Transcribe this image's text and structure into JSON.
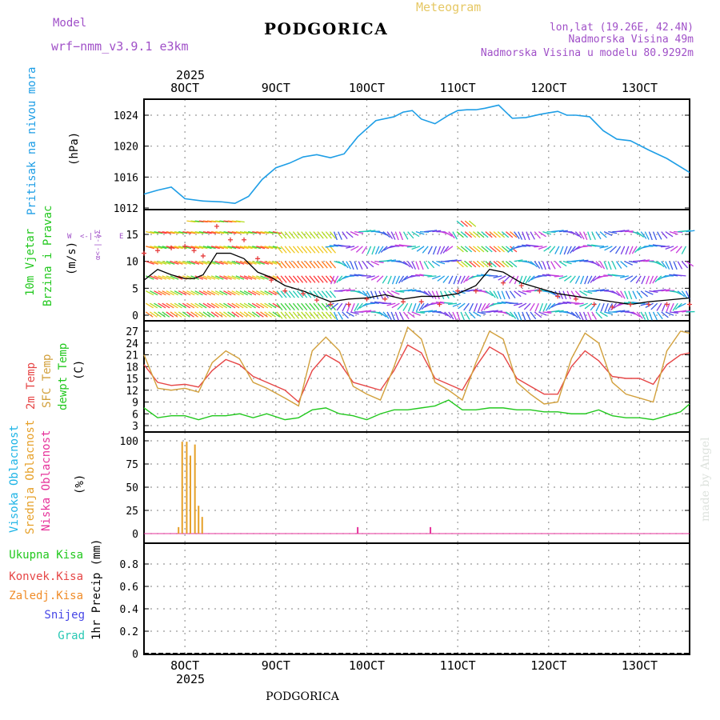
{
  "header": {
    "model_label": "Model",
    "model_name": "wrf−nmm_v3.9.1  e3km",
    "station": "PODGORICA",
    "product": "Meteogram",
    "lonlat": "lon,lat (19.26E, 42.4N)",
    "elevation": "Nadmorska Visina 49m",
    "model_elevation": "Nadmorska Visina u modelu 80.9292m",
    "footer_station": "PODGORICA",
    "credit": "made by Angel"
  },
  "colors": {
    "pressure": "#1e9ee6",
    "wind_speed_label": "#22c81e",
    "gust_label": "#22c81e",
    "temp2m": "#e64646",
    "sfc_temp": "#d2a03c",
    "dewpoint": "#22c81e",
    "cloud_high": "#1eb4e6",
    "cloud_mid": "#e6a028",
    "cloud_low": "#e6329a",
    "precip_total": "#22c81e",
    "precip_conv": "#e64646",
    "precip_frz": "#f08c28",
    "precip_snow": "#4646e6",
    "precip_hail": "#28c8b4",
    "title_purple": "#a050c8",
    "title_gold": "#e6c864",
    "wind_mean_line": "#000000",
    "wind_cross": "#e63c3c"
  },
  "time_axis": {
    "start_day": 7.55,
    "end_day": 13.55,
    "ticks": [
      {
        "day": 8,
        "label": "8OCT"
      },
      {
        "day": 9,
        "label": "9OCT"
      },
      {
        "day": 10,
        "label": "10OCT"
      },
      {
        "day": 11,
        "label": "11OCT"
      },
      {
        "day": 12,
        "label": "12OCT"
      },
      {
        "day": 13,
        "label": "13OCT"
      }
    ],
    "year": "2025"
  },
  "chart_data": [
    {
      "type": "line",
      "title": "Pritisak na nivou mora",
      "ylabel": "(hPa)",
      "ylim": [
        1012,
        1026
      ],
      "yticks": [
        "1012",
        "1016",
        "1020",
        "1024"
      ],
      "x": [
        7.55,
        7.7,
        7.85,
        8.0,
        8.2,
        8.4,
        8.55,
        8.7,
        8.85,
        9.0,
        9.15,
        9.3,
        9.45,
        9.6,
        9.75,
        9.9,
        10.1,
        10.3,
        10.4,
        10.5,
        10.6,
        10.75,
        10.9,
        11.0,
        11.1,
        11.2,
        11.3,
        11.45,
        11.6,
        11.75,
        11.9,
        12.0,
        12.1,
        12.2,
        12.3,
        12.45,
        12.6,
        12.75,
        12.9,
        13.1,
        13.3,
        13.55
      ],
      "series": [
        {
          "name": "MSLP",
          "values": [
            1013.8,
            1014.3,
            1014.7,
            1013.2,
            1012.9,
            1012.8,
            1012.6,
            1013.5,
            1015.7,
            1017.2,
            1017.8,
            1018.6,
            1018.9,
            1018.5,
            1019.0,
            1021.2,
            1023.3,
            1023.8,
            1024.4,
            1024.6,
            1023.5,
            1022.9,
            1024.0,
            1024.6,
            1024.7,
            1024.7,
            1024.9,
            1025.3,
            1023.6,
            1023.7,
            1024.1,
            1024.3,
            1024.5,
            1024.0,
            1024.0,
            1023.8,
            1022.0,
            1020.9,
            1020.7,
            1019.5,
            1018.4,
            1016.6
          ]
        }
      ]
    },
    {
      "type": "line",
      "title": "10m Vjetar Brzina i Pravac",
      "ylabel": "(m/s)",
      "ylim": [
        0,
        19
      ],
      "yticks": [
        "0",
        "5",
        "10",
        "15"
      ],
      "compass_label": "N <-|-> S  W <-|-> E",
      "x": [
        7.55,
        7.7,
        7.85,
        8.0,
        8.1,
        8.2,
        8.35,
        8.5,
        8.65,
        8.8,
        8.95,
        9.1,
        9.3,
        9.45,
        9.6,
        9.8,
        10.0,
        10.2,
        10.4,
        10.6,
        10.8,
        11.0,
        11.2,
        11.35,
        11.5,
        11.7,
        11.9,
        12.1,
        12.3,
        12.5,
        12.7,
        12.9,
        13.1,
        13.3,
        13.55
      ],
      "series": [
        {
          "name": "Srednja brzina",
          "values": [
            6.5,
            8.5,
            7.5,
            6.8,
            6.8,
            7.5,
            11.5,
            11.5,
            10.5,
            8.0,
            7.0,
            5.5,
            4.5,
            3.5,
            2.5,
            3.0,
            3.2,
            3.8,
            3.0,
            3.5,
            3.5,
            4.0,
            5.5,
            8.5,
            8.0,
            6.0,
            5.0,
            4.0,
            3.5,
            3.0,
            2.5,
            2.0,
            2.5,
            2.8,
            3.2
          ]
        },
        {
          "name": "Udari",
          "values": [
            11.5,
            12.0,
            12.5,
            12.8,
            12.0,
            11.0,
            16.5,
            14.0,
            14.0,
            10.5,
            6.5,
            4.5,
            4.0,
            2.8,
            2.0,
            2.0,
            3.0,
            3.0,
            2.5,
            2.5,
            2.0,
            4.5,
            4.5,
            9.5,
            6.0,
            5.5,
            4.5,
            3.5,
            3.0,
            2.0,
            1.5,
            2.0,
            2.0,
            2.0,
            2.0
          ]
        }
      ]
    },
    {
      "type": "line",
      "title": "2m Temp / SFC Temp / dewpt Temp",
      "ylabel": "(C)",
      "ylim": [
        2,
        29
      ],
      "yticks": [
        "3",
        "6",
        "9",
        "12",
        "15",
        "18",
        "21",
        "24",
        "27"
      ],
      "x": [
        7.55,
        7.7,
        7.85,
        8.0,
        8.15,
        8.3,
        8.45,
        8.6,
        8.75,
        8.9,
        9.1,
        9.25,
        9.4,
        9.55,
        9.7,
        9.85,
        10.0,
        10.15,
        10.3,
        10.45,
        10.6,
        10.75,
        10.9,
        11.05,
        11.2,
        11.35,
        11.5,
        11.65,
        11.8,
        11.95,
        12.1,
        12.25,
        12.4,
        12.55,
        12.7,
        12.85,
        13.0,
        13.15,
        13.3,
        13.45,
        13.55
      ],
      "series": [
        {
          "name": "2m Temp",
          "values": [
            18.5,
            14.0,
            13.2,
            13.5,
            12.8,
            17.0,
            19.8,
            18.5,
            15.5,
            14.0,
            12.0,
            9.0,
            17.0,
            21.0,
            19.0,
            14.0,
            13.0,
            12.0,
            17.0,
            23.5,
            21.5,
            15.0,
            13.5,
            12.0,
            18.0,
            23.0,
            21.0,
            15.0,
            13.0,
            11.0,
            11.0,
            18.0,
            22.0,
            19.5,
            15.5,
            15.0,
            15.0,
            13.5,
            18.5,
            21.0,
            21.5
          ]
        },
        {
          "name": "SFC Temp",
          "values": [
            21.0,
            12.5,
            12.0,
            12.5,
            11.5,
            19.0,
            22.0,
            20.0,
            14.0,
            12.5,
            10.0,
            8.0,
            22.0,
            25.5,
            22.0,
            13.0,
            11.0,
            9.5,
            18.0,
            28.0,
            25.0,
            14.0,
            12.0,
            9.5,
            19.0,
            27.0,
            25.0,
            14.0,
            11.0,
            8.5,
            9.0,
            20.0,
            26.5,
            24.0,
            14.0,
            11.0,
            10.0,
            9.0,
            22.0,
            27.0,
            26.5
          ]
        },
        {
          "name": "dewpt Temp",
          "values": [
            7.5,
            5.0,
            5.5,
            5.5,
            4.5,
            5.5,
            5.5,
            6.0,
            5.0,
            6.0,
            4.5,
            5.0,
            7.0,
            7.5,
            6.0,
            5.5,
            4.5,
            6.0,
            7.0,
            7.0,
            7.5,
            8.0,
            9.5,
            7.0,
            7.0,
            7.5,
            7.5,
            7.0,
            7.0,
            6.5,
            6.5,
            6.0,
            6.0,
            7.0,
            5.5,
            5.0,
            5.0,
            4.5,
            5.5,
            6.5,
            8.5
          ]
        }
      ]
    },
    {
      "type": "bar",
      "title": "Visoka / Srednja / Niska Oblacnost",
      "ylabel": "(%)",
      "ylim": [
        0,
        105
      ],
      "yticks": [
        "0",
        "25",
        "50",
        "75",
        "100"
      ],
      "series": [
        {
          "name": "Srednja Oblacnost",
          "x": [
            7.93,
            7.97,
            8.02,
            8.06,
            8.11,
            8.15,
            8.19
          ],
          "values": [
            7,
            99,
            99,
            84,
            96,
            30,
            18
          ]
        },
        {
          "name": "Niska Oblacnost",
          "x": [
            9.9,
            10.7
          ],
          "values": [
            7,
            7
          ]
        }
      ]
    },
    {
      "type": "bar",
      "title": "1hr Precip",
      "ylabel": "1hr Precip (mm)",
      "ylim": [
        0,
        1.0
      ],
      "yticks": [
        "0",
        "0.2",
        "0.4",
        "0.6",
        "0.8"
      ],
      "legend": [
        "Ukupna Kisa",
        "Konvek.Kisa",
        "Zaledj.Kisa",
        "Snijeg",
        "Grad"
      ],
      "x": [],
      "values": []
    }
  ],
  "panel_labels": {
    "pressure": [
      "Pritisak na nivou mora"
    ],
    "pressure_unit": "(hPa)",
    "wind": [
      "10m Vjetar",
      "Brzina i Pravac"
    ],
    "wind_unit": "(m/s)",
    "temp": [
      "2m Temp",
      "SFC Temp",
      "dewpt Temp"
    ],
    "temp_unit": "(C)",
    "cloud": [
      "Visoka Oblacnost",
      "Srednja Oblacnost",
      "Niska Oblacnost"
    ],
    "cloud_unit": "(%)",
    "precip": [
      "Ukupna Kisa",
      "Konvek.Kisa",
      "Zaledj.Kisa",
      "Snijeg",
      "Grad"
    ],
    "precip_unit": "1hr Precip (mm)"
  }
}
